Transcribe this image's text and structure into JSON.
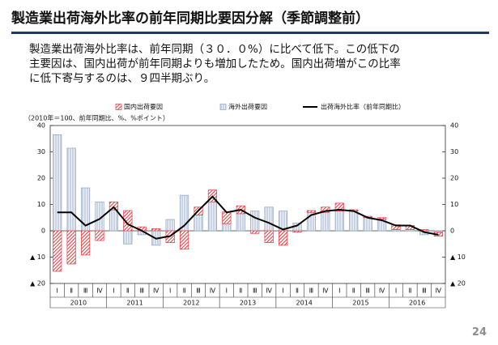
{
  "title": "製造業出荷海外比率の前年同期比要因分解（季節調整前）",
  "body_lines": [
    "製造業出荷海外比率は、前年同期（３０．０%）に比べて低下。この低下の",
    "主要因は、国内出荷が前年同期よりも増加したため。国内出荷増がこの比率",
    "に低下寄与するのは、９四半期ぶり。"
  ],
  "page_number": "24",
  "chart_data": {
    "type": "bar_line",
    "note": "（2010年＝100、前年同期比、%、%ポイント）",
    "categories": [
      "Ⅰ",
      "Ⅱ",
      "Ⅲ",
      "Ⅳ",
      "Ⅰ",
      "Ⅱ",
      "Ⅲ",
      "Ⅳ",
      "Ⅰ",
      "Ⅱ",
      "Ⅲ",
      "Ⅳ",
      "Ⅰ",
      "Ⅱ",
      "Ⅲ",
      "Ⅳ",
      "Ⅰ",
      "Ⅱ",
      "Ⅲ",
      "Ⅳ",
      "Ⅰ",
      "Ⅱ",
      "Ⅲ",
      "Ⅳ",
      "Ⅰ",
      "Ⅱ",
      "Ⅲ",
      "Ⅳ"
    ],
    "years": [
      "2010",
      "2011",
      "2012",
      "2013",
      "2014",
      "2015",
      "2016"
    ],
    "series": [
      {
        "name": "国内出荷要因",
        "kind": "bar",
        "color": "#e8383d",
        "values": [
          -15.4,
          -12.6,
          -9.2,
          -3.7,
          3,
          7.7,
          1.5,
          0.8,
          -4.5,
          -7,
          3,
          4.5,
          4.5,
          3,
          -1,
          -4.5,
          -5.5,
          -0.5,
          0.7,
          2,
          3,
          0.5,
          0.5,
          0.5,
          1.8,
          1.5,
          0.5,
          -1.5
        ]
      },
      {
        "name": "海外出荷要因",
        "kind": "bar",
        "color": "#8fa3c0",
        "values": [
          36.5,
          31.4,
          16.3,
          11,
          8,
          -5,
          -1.5,
          -5.5,
          4.3,
          13.5,
          6,
          11,
          2.7,
          6.5,
          7.5,
          9,
          7.5,
          3,
          7,
          7,
          7.5,
          7.5,
          5,
          4.5,
          0.5,
          0.5,
          -1.5,
          -0.5
        ]
      },
      {
        "name": "出荷海外比率（前年同期比）",
        "kind": "line",
        "color": "#000000",
        "values": [
          7,
          7,
          2,
          4.5,
          9,
          2.5,
          0,
          -3,
          -2,
          2,
          7.7,
          13,
          7,
          8,
          5,
          3,
          0.5,
          2,
          6,
          7.5,
          8,
          7.5,
          5,
          4,
          2,
          2,
          -0.5,
          -1.5
        ]
      }
    ],
    "ylim": [
      -20,
      40
    ],
    "yticks": [
      40,
      30,
      20,
      10,
      0,
      {
        "value": -10,
        "label": "▲ 10"
      },
      {
        "value": -20,
        "label": "▲ 20"
      }
    ]
  }
}
